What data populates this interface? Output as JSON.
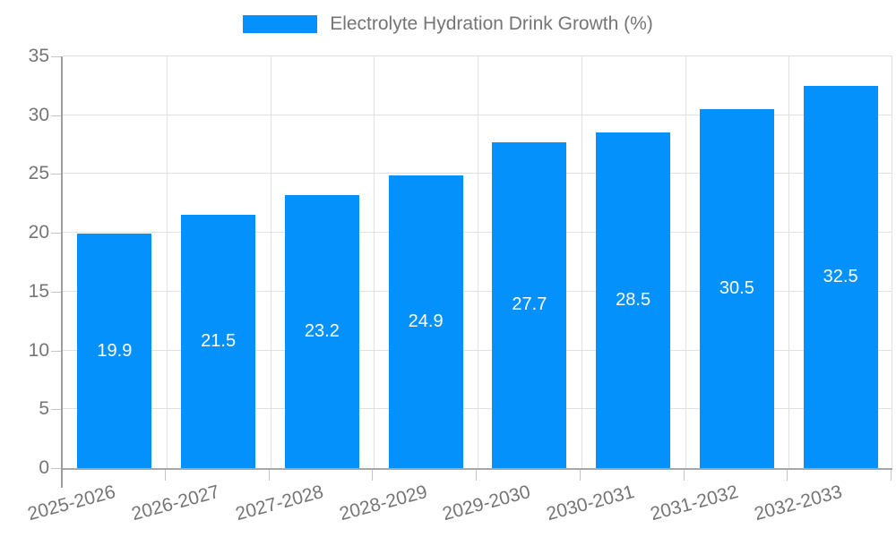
{
  "chart_data": {
    "type": "bar",
    "legend_label": "Electrolyte Hydration Drink Growth (%)",
    "legend_position": "top-center",
    "categories": [
      "2025-2026",
      "2026-2027",
      "2027-2028",
      "2028-2029",
      "2029-2030",
      "2030-2031",
      "2031-2032",
      "2032-2033"
    ],
    "values": [
      19.9,
      21.5,
      23.2,
      24.9,
      27.7,
      28.5,
      30.5,
      32.5
    ],
    "y_tick_labels": [
      "0",
      "5",
      "10",
      "15",
      "20",
      "25",
      "30",
      "35"
    ],
    "ylim": [
      0,
      35
    ],
    "ytick_step": 5,
    "grid": true,
    "x_label_rotation_deg": -15,
    "colors": {
      "bar": "#0591FC",
      "bar_value_label": "#FFFFFF",
      "axis_line": "#9E9E9E",
      "gridline": "#E0E0E0",
      "tick": "#C4C4C4",
      "text": "#757575"
    }
  }
}
